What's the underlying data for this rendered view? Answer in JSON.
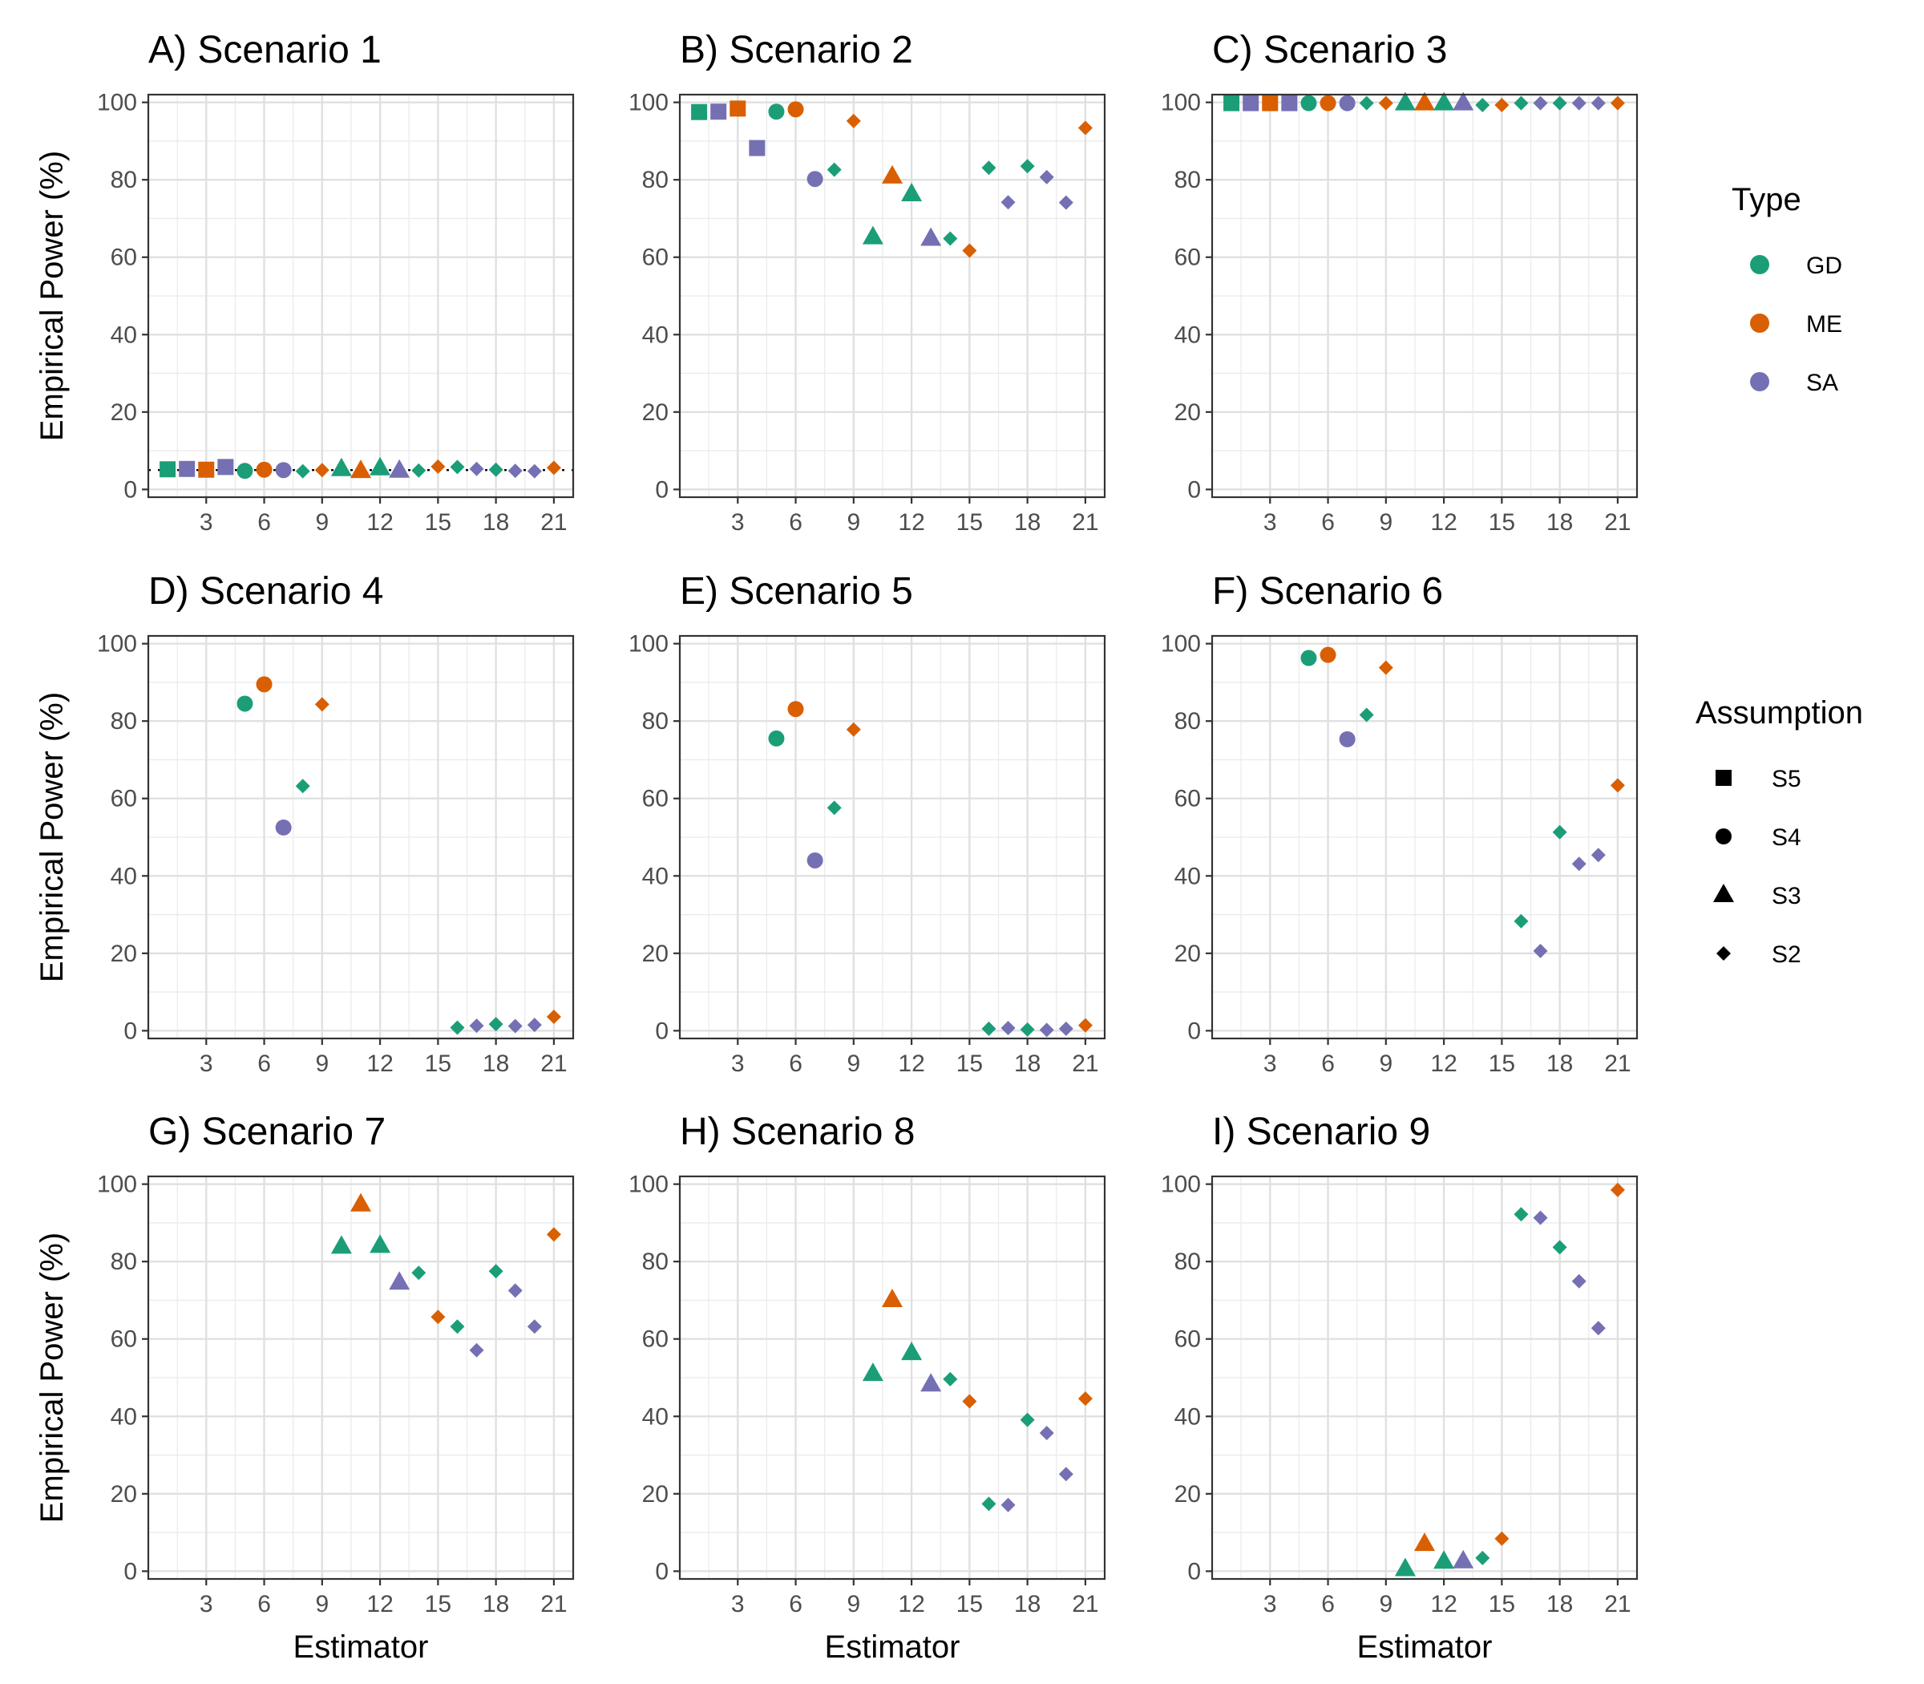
{
  "figure": {
    "x_axis_label": "Estimator",
    "y_axis_label": "Empirical Power (%)"
  },
  "legend": {
    "type_title": "Type",
    "type_items": [
      {
        "label": "GD",
        "color": "#1b9e77"
      },
      {
        "label": "ME",
        "color": "#d95f02"
      },
      {
        "label": "SA",
        "color": "#7570b3"
      }
    ],
    "assumption_title": "Assumption",
    "assumption_items": [
      {
        "label": "S5",
        "shape": "square"
      },
      {
        "label": "S4",
        "shape": "circle"
      },
      {
        "label": "S3",
        "shape": "triangle"
      },
      {
        "label": "S2",
        "shape": "diamond"
      }
    ]
  },
  "chart_data": {
    "type": "scatter",
    "x_ticks": [
      "3",
      "6",
      "9",
      "12",
      "15",
      "18",
      "21"
    ],
    "y_ticks": [
      "0",
      "20",
      "40",
      "60",
      "80",
      "100"
    ],
    "xlim": [
      0,
      22
    ],
    "ylim": [
      -2,
      102
    ],
    "estimators": [
      {
        "x": 1,
        "type": "GD",
        "assumption": "S5"
      },
      {
        "x": 2,
        "type": "SA",
        "assumption": "S5"
      },
      {
        "x": 3,
        "type": "ME",
        "assumption": "S5"
      },
      {
        "x": 4,
        "type": "SA",
        "assumption": "S5"
      },
      {
        "x": 5,
        "type": "GD",
        "assumption": "S4"
      },
      {
        "x": 6,
        "type": "ME",
        "assumption": "S4"
      },
      {
        "x": 7,
        "type": "SA",
        "assumption": "S4"
      },
      {
        "x": 8,
        "type": "GD",
        "assumption": "S2"
      },
      {
        "x": 9,
        "type": "ME",
        "assumption": "S2"
      },
      {
        "x": 10,
        "type": "GD",
        "assumption": "S3"
      },
      {
        "x": 11,
        "type": "ME",
        "assumption": "S3"
      },
      {
        "x": 12,
        "type": "GD",
        "assumption": "S3"
      },
      {
        "x": 13,
        "type": "SA",
        "assumption": "S3"
      },
      {
        "x": 14,
        "type": "GD",
        "assumption": "S2"
      },
      {
        "x": 15,
        "type": "ME",
        "assumption": "S2"
      },
      {
        "x": 16,
        "type": "GD",
        "assumption": "S2"
      },
      {
        "x": 17,
        "type": "SA",
        "assumption": "S2"
      },
      {
        "x": 18,
        "type": "GD",
        "assumption": "S2"
      },
      {
        "x": 19,
        "type": "SA",
        "assumption": "S2"
      },
      {
        "x": 20,
        "type": "SA",
        "assumption": "S2"
      },
      {
        "x": 21,
        "type": "ME",
        "assumption": "S2"
      }
    ],
    "panels": [
      {
        "title": "A) Scenario 1",
        "reference_line": 5,
        "values": [
          5.2,
          5.3,
          5.1,
          5.8,
          4.8,
          5.1,
          5.0,
          4.7,
          5.0,
          5.3,
          4.8,
          5.5,
          4.9,
          4.9,
          5.9,
          5.8,
          5.3,
          5.1,
          4.8,
          4.7,
          5.6
        ]
      },
      {
        "title": "B) Scenario 2",
        "values": [
          97.5,
          97.6,
          98.4,
          88.2,
          97.6,
          98.2,
          80.2,
          82.6,
          95.2,
          65.2,
          80.9,
          76.3,
          64.8,
          64.8,
          61.7,
          83.1,
          74.2,
          83.5,
          80.7,
          74.1,
          93.4
        ]
      },
      {
        "title": "C) Scenario 3",
        "values": [
          99.8,
          99.8,
          99.8,
          99.8,
          99.8,
          99.8,
          99.8,
          99.8,
          99.8,
          99.8,
          99.8,
          99.8,
          99.8,
          99.3,
          99.3,
          99.8,
          99.8,
          99.8,
          99.8,
          99.8,
          99.8
        ]
      },
      {
        "title": "D) Scenario 4",
        "values": [
          null,
          null,
          null,
          null,
          84.5,
          89.5,
          52.5,
          63.2,
          84.3,
          null,
          null,
          null,
          null,
          null,
          null,
          0.8,
          1.3,
          1.7,
          1.2,
          1.5,
          3.6
        ]
      },
      {
        "title": "E) Scenario 5",
        "values": [
          null,
          null,
          null,
          null,
          75.5,
          83.1,
          44.0,
          57.6,
          77.8,
          null,
          null,
          null,
          null,
          null,
          null,
          0.5,
          0.7,
          0.3,
          0.2,
          0.5,
          1.4
        ]
      },
      {
        "title": "F) Scenario 6",
        "values": [
          null,
          null,
          null,
          null,
          96.3,
          97.1,
          75.3,
          81.6,
          93.8,
          null,
          null,
          null,
          null,
          null,
          null,
          28.3,
          20.6,
          51.3,
          43.1,
          45.4,
          63.4
        ]
      },
      {
        "title": "G) Scenario 7",
        "values": [
          null,
          null,
          null,
          null,
          null,
          null,
          null,
          null,
          null,
          83.9,
          94.8,
          84.1,
          74.6,
          77.1,
          65.7,
          63.2,
          57.1,
          77.5,
          72.5,
          63.2,
          87.0
        ]
      },
      {
        "title": "H) Scenario 8",
        "values": [
          null,
          null,
          null,
          null,
          null,
          null,
          null,
          null,
          null,
          51.0,
          70.1,
          56.4,
          48.3,
          49.6,
          43.9,
          17.4,
          17.1,
          39.1,
          35.7,
          25.1,
          44.6
        ]
      },
      {
        "title": "I) Scenario 9",
        "values": [
          null,
          null,
          null,
          null,
          null,
          null,
          null,
          null,
          null,
          0.6,
          7.1,
          2.5,
          2.6,
          3.4,
          8.4,
          92.2,
          91.3,
          83.7,
          74.9,
          62.8,
          98.5
        ]
      }
    ]
  }
}
